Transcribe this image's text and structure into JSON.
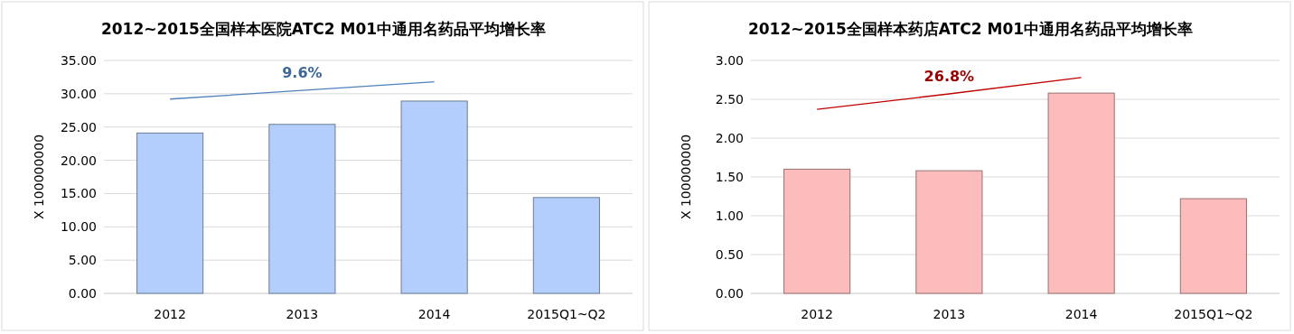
{
  "chart_data": [
    {
      "type": "bar",
      "title": "2012~2015全国样本医院ATC2 M01中通用名药品平均增长率",
      "ylabel": "X 100000000",
      "categories": [
        "2012",
        "2013",
        "2014",
        "2015Q1~Q2"
      ],
      "series": [
        {
          "color": "#b4cefb",
          "values": [
            24.1,
            25.4,
            28.9,
            14.4
          ]
        },
        {
          "type": "line",
          "color": "#4f81bd",
          "values": [
            29.2,
            30.5,
            31.8,
            null
          ]
        }
      ],
      "annotations": [
        "9.6%"
      ],
      "ylim": [
        0,
        35
      ],
      "yticks": [
        {
          "value": 0,
          "label": "0.00"
        },
        {
          "value": 5,
          "label": "5.00"
        },
        {
          "value": 10,
          "label": "10.00"
        },
        {
          "value": 15,
          "label": "15.00"
        },
        {
          "value": 20,
          "label": "20.00"
        },
        {
          "value": 25,
          "label": "25.00"
        },
        {
          "value": 30,
          "label": "30.00"
        },
        {
          "value": 35,
          "label": "35.00"
        }
      ],
      "grid": "y"
    },
    {
      "type": "bar",
      "title": "2012~2015全国样本药店ATC2 M01中通用名药品平均增长率",
      "ylabel": "X 100000000",
      "categories": [
        "2012",
        "2013",
        "2014",
        "2015Q1~Q2"
      ],
      "series": [
        {
          "color": "#fdbcbc",
          "values": [
            1.6,
            1.58,
            2.58,
            1.22
          ]
        },
        {
          "type": "line",
          "color": "#c00000",
          "values": [
            2.37,
            2.57,
            2.78,
            null
          ]
        }
      ],
      "annotations": [
        "26.8%"
      ],
      "ylim": [
        0,
        3
      ],
      "yticks": [
        {
          "value": 0,
          "label": "0.00"
        },
        {
          "value": 0.5,
          "label": "0.50"
        },
        {
          "value": 1,
          "label": "1.00"
        },
        {
          "value": 1.5,
          "label": "1.50"
        },
        {
          "value": 2,
          "label": "2.00"
        },
        {
          "value": 2.5,
          "label": "2.50"
        },
        {
          "value": 3,
          "label": "3.00"
        }
      ],
      "grid": "y"
    }
  ]
}
